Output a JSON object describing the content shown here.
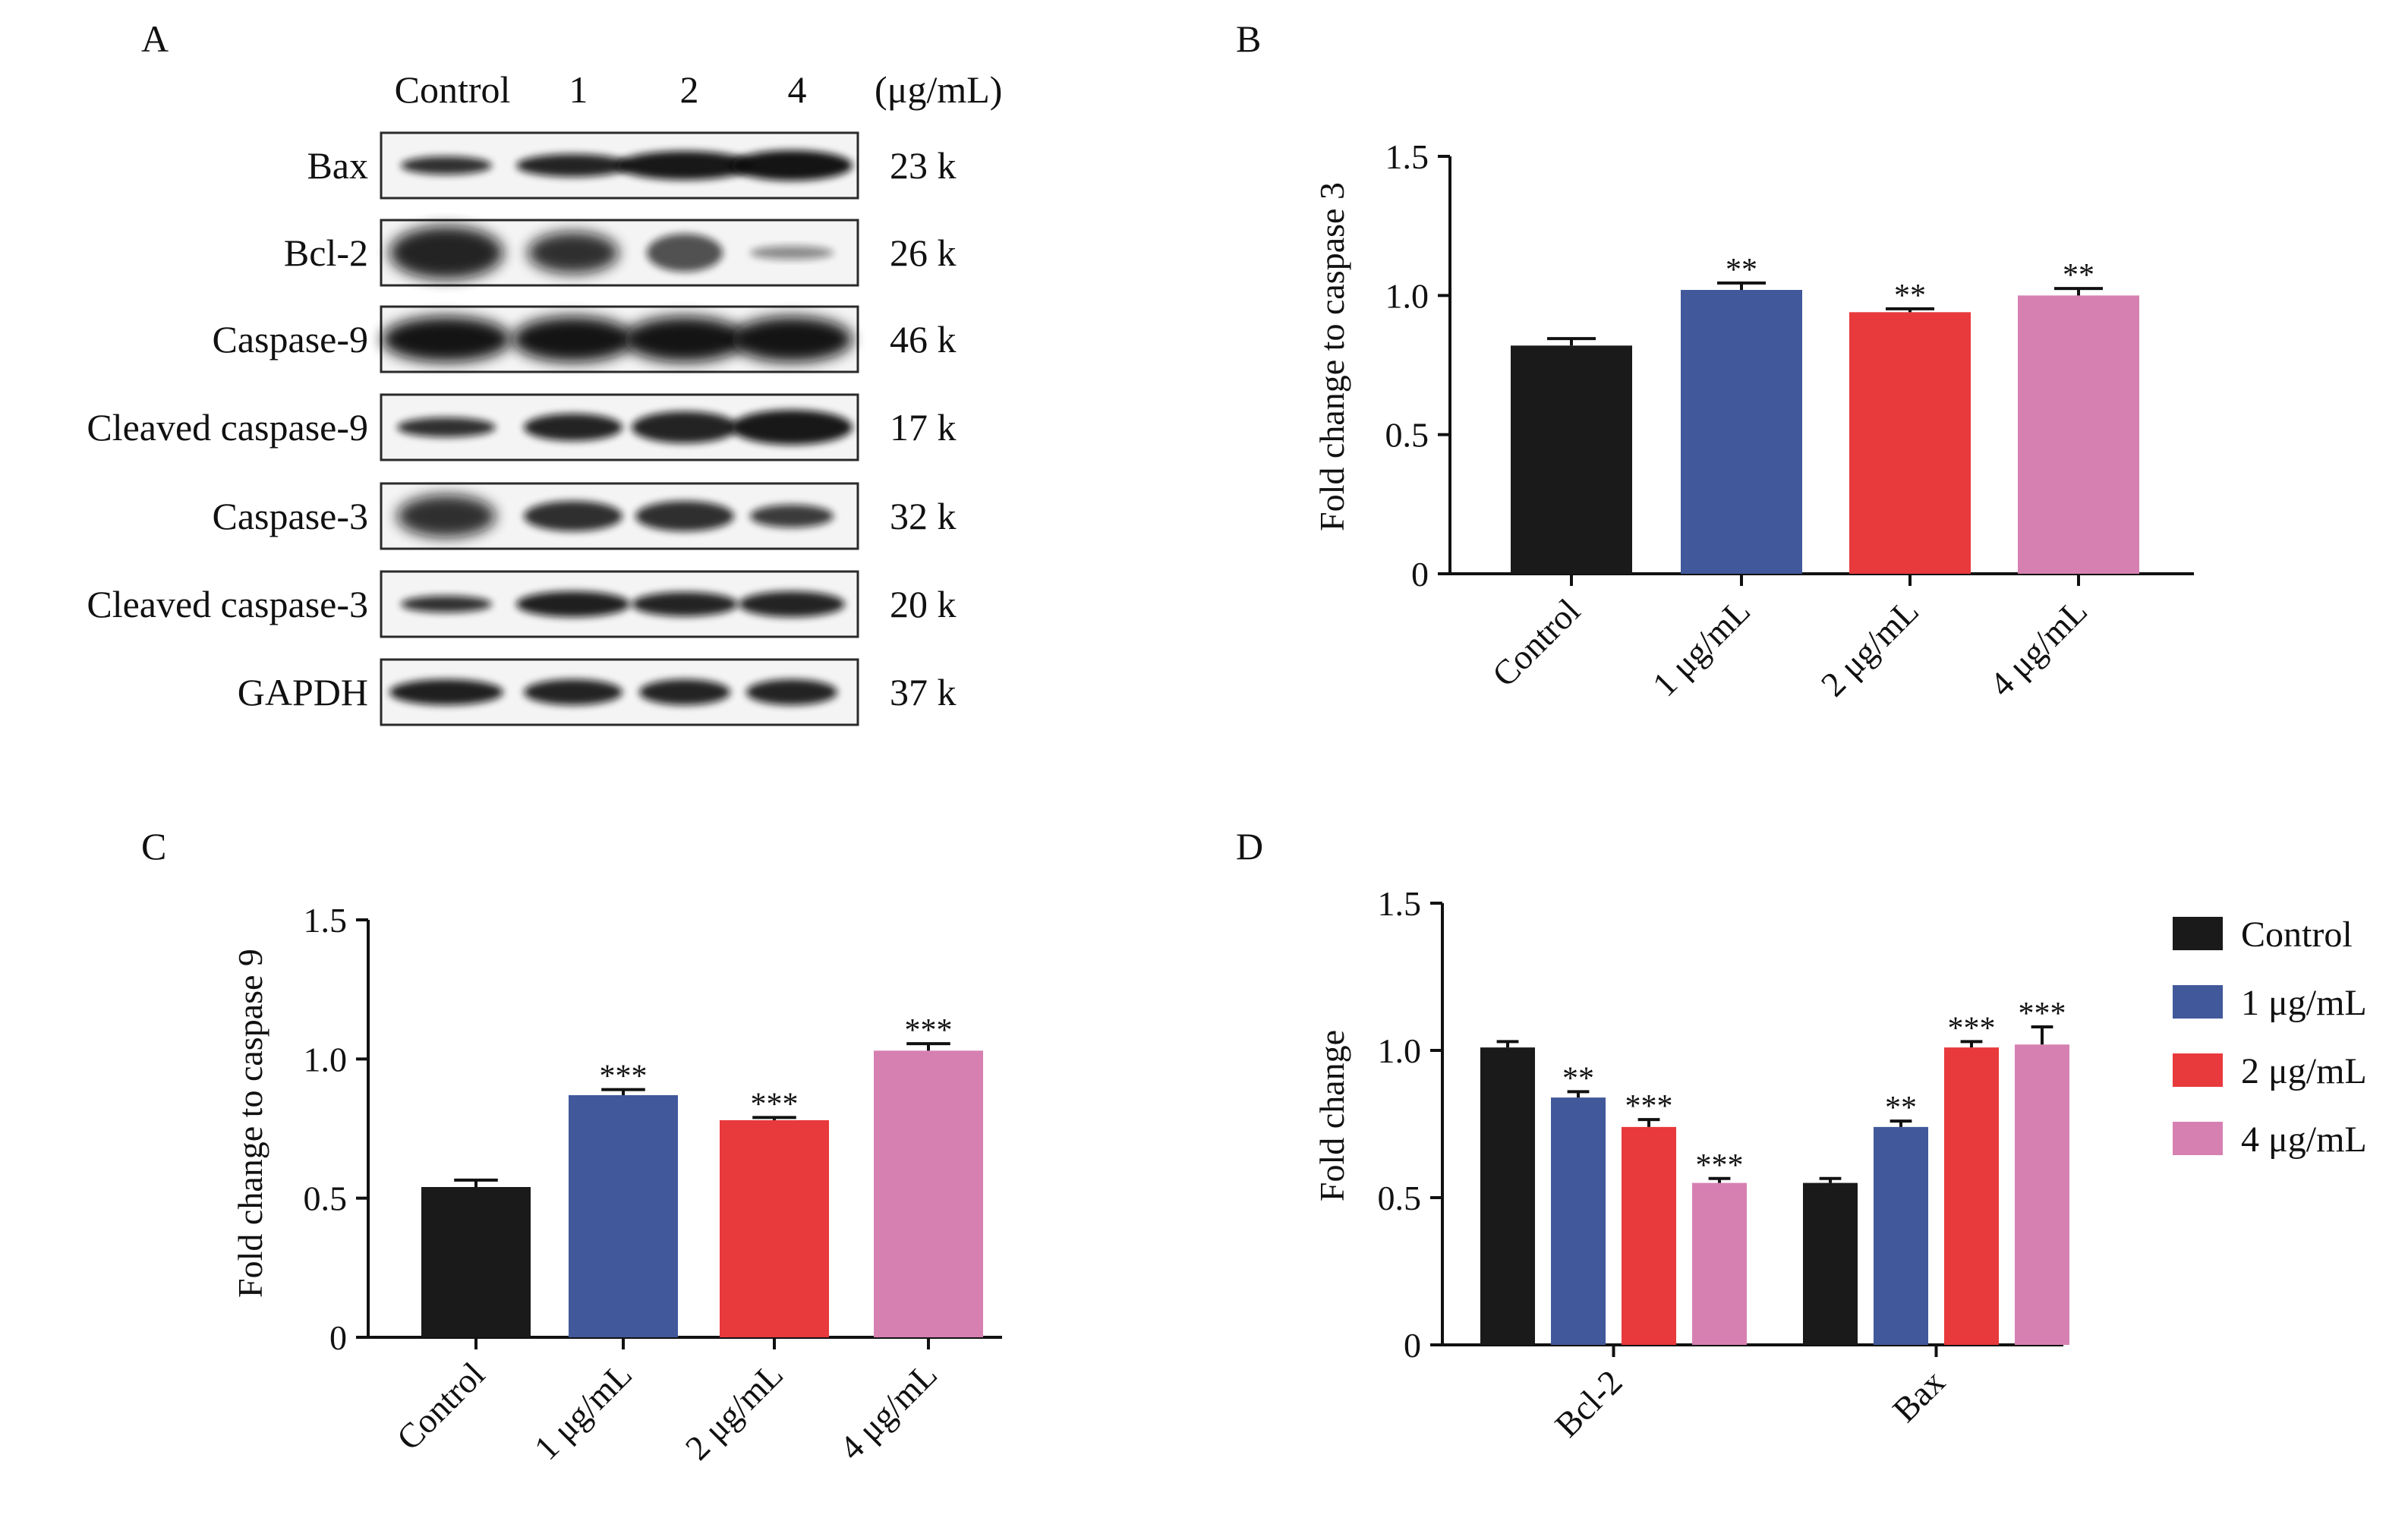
{
  "panel_labels": {
    "A": "A",
    "B": "B",
    "C": "C",
    "D": "D"
  },
  "blot": {
    "samples": [
      "Control",
      "1",
      "2",
      "4"
    ],
    "unit": "(μg/mL)",
    "rows": [
      {
        "protein": "Bax",
        "kda": "23 k"
      },
      {
        "protein": "Bcl-2",
        "kda": "26 k"
      },
      {
        "protein": "Caspase-9",
        "kda": "46 k"
      },
      {
        "protein": "Cleaved caspase-9",
        "kda": "17 k"
      },
      {
        "protein": "Caspase-3",
        "kda": "32 k"
      },
      {
        "protein": "Cleaved caspase-3",
        "kda": "20 k"
      },
      {
        "protein": "GAPDH",
        "kda": "37 k"
      }
    ]
  },
  "colors": {
    "control": "#1a1a1a",
    "dose1": "#41599b",
    "dose2": "#e8393c",
    "dose4": "#d680b2"
  },
  "chart_data": [
    {
      "panel": "B",
      "type": "bar",
      "title": "",
      "xlabel": "",
      "ylabel": "Fold change to caspase 3",
      "ylim": [
        0,
        1.5
      ],
      "yticks": [
        "0",
        "0.5",
        "1.0",
        "1.5"
      ],
      "categories": [
        "Control",
        "1 μg/mL",
        "2 μg/mL",
        "4 μg/mL"
      ],
      "values": [
        0.82,
        1.02,
        0.94,
        1.0
      ],
      "errors": [
        0.025,
        0.025,
        0.012,
        0.025
      ],
      "significance": [
        "",
        "**",
        "**",
        "**"
      ]
    },
    {
      "panel": "C",
      "type": "bar",
      "title": "",
      "xlabel": "",
      "ylabel": "Fold change to caspase 9",
      "ylim": [
        0,
        1.5
      ],
      "yticks": [
        "0",
        "0.5",
        "1.0",
        "1.5"
      ],
      "categories": [
        "Control",
        "1 μg/mL",
        "2 μg/mL",
        "4 μg/mL"
      ],
      "values": [
        0.54,
        0.87,
        0.78,
        1.03
      ],
      "errors": [
        0.025,
        0.02,
        0.01,
        0.025
      ],
      "significance": [
        "",
        "***",
        "***",
        "***"
      ]
    },
    {
      "panel": "D",
      "type": "bar",
      "title": "",
      "xlabel": "",
      "ylabel": "Fold change",
      "ylim": [
        0,
        1.5
      ],
      "yticks": [
        "0",
        "0.5",
        "1.0",
        "1.5"
      ],
      "categories": [
        "Bcl-2",
        "Bax"
      ],
      "series": [
        {
          "name": "Control",
          "values": [
            1.01,
            0.55
          ],
          "errors": [
            0.02,
            0.015
          ],
          "significance": [
            "",
            ""
          ]
        },
        {
          "name": "1 μg/mL",
          "values": [
            0.84,
            0.74
          ],
          "errors": [
            0.02,
            0.02
          ],
          "significance": [
            "**",
            "**"
          ]
        },
        {
          "name": "2 μg/mL",
          "values": [
            0.74,
            1.01
          ],
          "errors": [
            0.025,
            0.02
          ],
          "significance": [
            "***",
            "***"
          ]
        },
        {
          "name": "4 μg/mL",
          "values": [
            0.55,
            1.02
          ],
          "errors": [
            0.015,
            0.06
          ],
          "significance": [
            "***",
            "***"
          ]
        }
      ],
      "legend": "right"
    }
  ]
}
